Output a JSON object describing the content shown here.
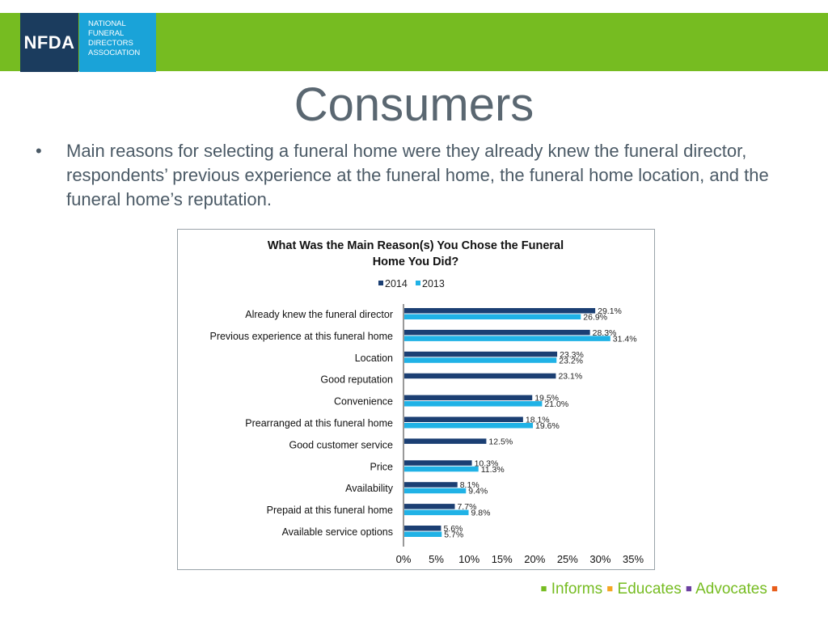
{
  "logo": {
    "mark": "NFDA",
    "lines": [
      "NATIONAL",
      "FUNERAL",
      "DIRECTORS",
      "ASSOCIATION"
    ]
  },
  "slide": {
    "title": "Consumers",
    "bullet_marker": "•",
    "bullet": "Main reasons for selecting a funeral home were they already knew the funeral director, respondents’ previous experience at the funeral home, the funeral home location, and the funeral home’s reputation."
  },
  "footer": {
    "items": [
      {
        "label": "Informs",
        "square_color": "#76bc21"
      },
      {
        "label": "Educates",
        "square_color": "#f5a623"
      },
      {
        "label": "Advocates",
        "square_color": "#6b3fa0"
      }
    ],
    "end_square_color": "#e85d1a",
    "square_glyph": "■"
  },
  "chart_data": {
    "type": "bar",
    "orientation": "horizontal",
    "title": "What Was the Main Reason(s) You Chose the Funeral Home You Did?",
    "title_lines": [
      "What Was the Main Reason(s) You Chose the Funeral",
      "Home You Did?"
    ],
    "categories": [
      "Already knew the funeral director",
      "Previous experience at this funeral home",
      "Location",
      "Good reputation",
      "Convenience",
      "Prearranged at this funeral home",
      "Good customer service",
      "Price",
      "Availability",
      "Prepaid at this funeral home",
      "Available service options"
    ],
    "series": [
      {
        "name": "2014",
        "color": "#1b3f73",
        "values": [
          29.1,
          28.3,
          23.3,
          23.1,
          19.5,
          18.1,
          12.5,
          10.3,
          8.1,
          7.7,
          5.6
        ]
      },
      {
        "name": "2013",
        "color": "#20b2e6",
        "values": [
          26.9,
          31.4,
          23.2,
          null,
          21.0,
          19.6,
          null,
          11.3,
          9.4,
          9.8,
          5.7
        ]
      }
    ],
    "xlim": [
      0,
      35
    ],
    "xticks": [
      "0%",
      "5%",
      "10%",
      "15%",
      "20%",
      "25%",
      "30%",
      "35%"
    ],
    "xtick_values": [
      0,
      5,
      10,
      15,
      20,
      25,
      30,
      35
    ],
    "legend_position": "top",
    "grid": false
  }
}
